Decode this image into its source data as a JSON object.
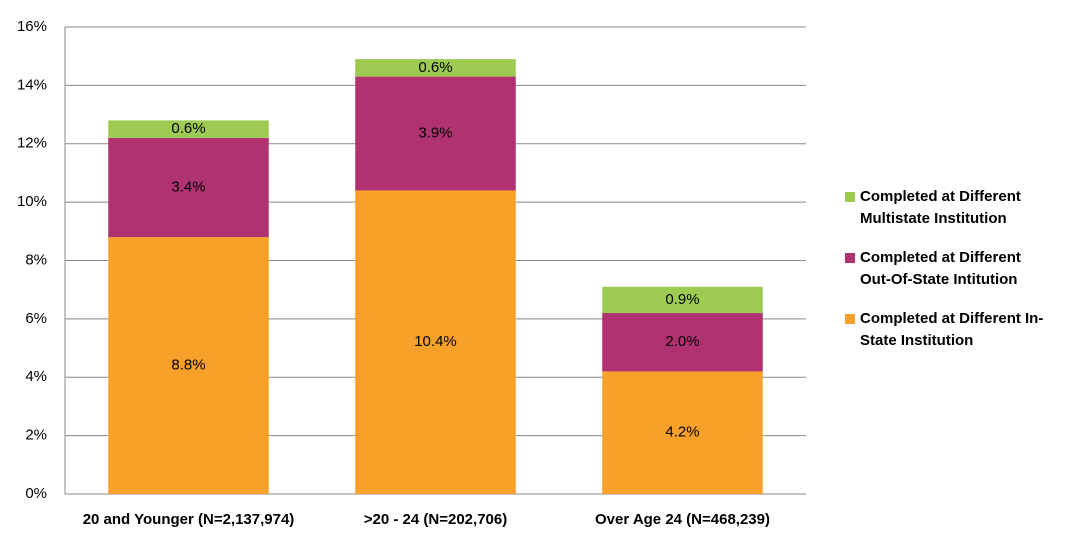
{
  "chart_data": {
    "type": "stacked-bar",
    "categories": [
      "20 and Younger (N=2,137,974)",
      ">20 - 24 (N=202,706)",
      "Over Age 24 (N=468,239)"
    ],
    "series": [
      {
        "name": "Completed at Different In-State Institution",
        "color": "#f7a12b",
        "values": [
          8.8,
          10.4,
          4.2
        ],
        "value_labels": [
          "8.8%",
          "10.4%",
          "4.2%"
        ]
      },
      {
        "name": "Completed at Different Out-Of-State Intitution",
        "color": "#b03270",
        "values": [
          3.4,
          3.9,
          2.0
        ],
        "value_labels": [
          "3.4%",
          "3.9%",
          "2.0%"
        ]
      },
      {
        "name": "Completed at Different Multistate Institution",
        "color": "#9dcb52",
        "values": [
          0.6,
          0.6,
          0.9
        ],
        "value_labels": [
          "0.6%",
          "0.6%",
          "0.9%"
        ]
      }
    ],
    "ylim": [
      0,
      16
    ],
    "yticks": [
      {
        "value": 0,
        "label": "0%"
      },
      {
        "value": 2,
        "label": "2%"
      },
      {
        "value": 4,
        "label": "4%"
      },
      {
        "value": 6,
        "label": "6%"
      },
      {
        "value": 8,
        "label": "8%"
      },
      {
        "value": 10,
        "label": "10%"
      },
      {
        "value": 12,
        "label": "12%"
      },
      {
        "value": 14,
        "label": "14%"
      },
      {
        "value": 16,
        "label": "16%"
      }
    ],
    "grid": true
  }
}
